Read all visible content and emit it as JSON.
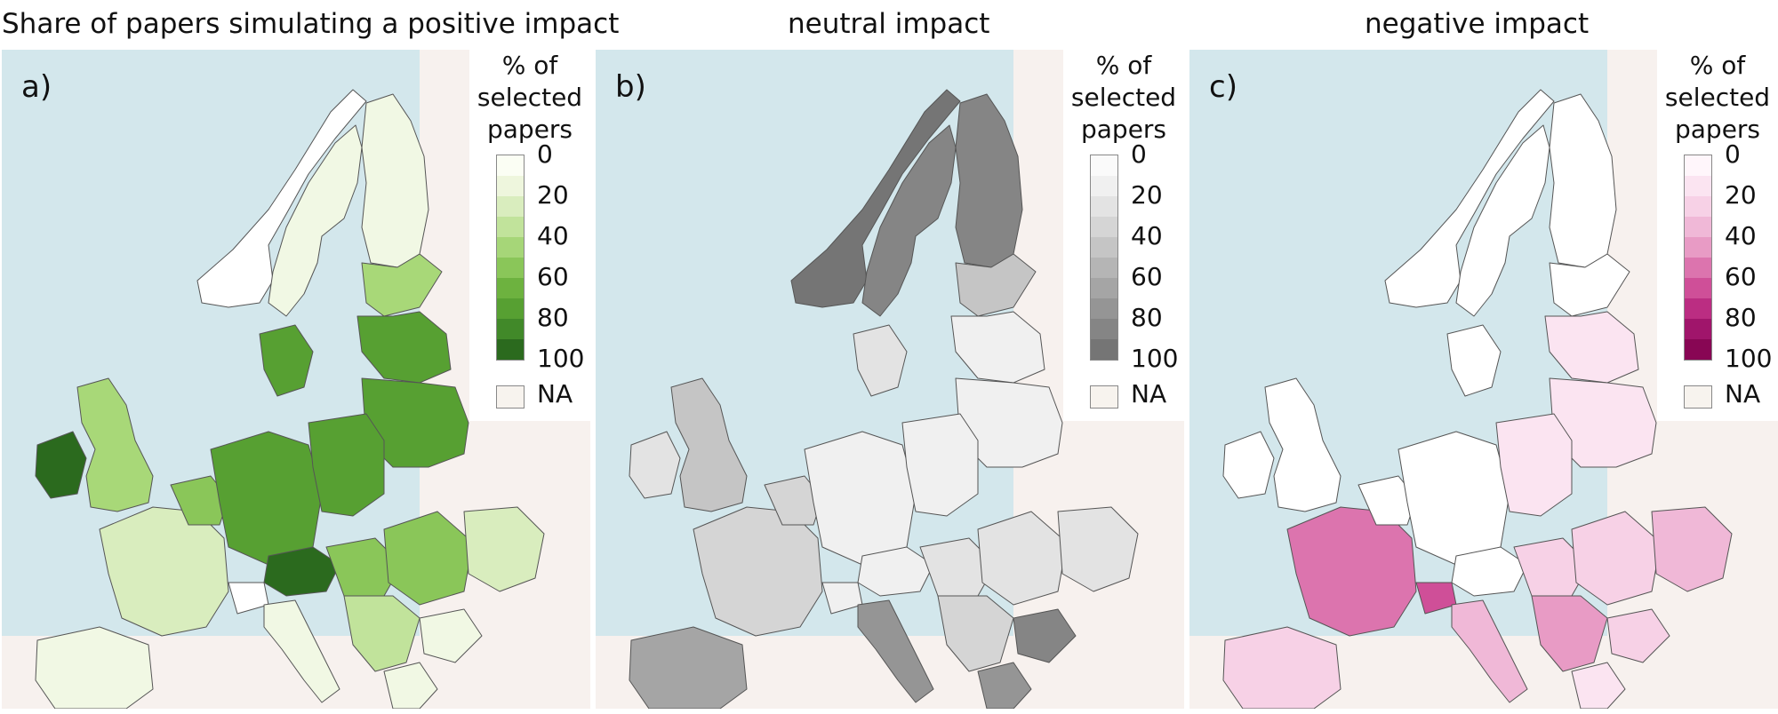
{
  "panels": [
    {
      "title": "Share of papers simulating a positive impact",
      "letter": "a)",
      "legend": {
        "title_lines": [
          "% of",
          "selected",
          "papers"
        ],
        "ticks": [
          "0",
          "20",
          "40",
          "60",
          "80",
          "100"
        ],
        "na_label": "NA",
        "colors": [
          "#fbfef4",
          "#eef6dd",
          "#d9edbe",
          "#c1e39b",
          "#a6d678",
          "#8ac659",
          "#6db23f",
          "#57a032",
          "#418929",
          "#2b6a1e"
        ]
      }
    },
    {
      "title": "neutral impact",
      "letter": "b)",
      "legend": {
        "title_lines": [
          "% of",
          "selected",
          "papers"
        ],
        "ticks": [
          "0",
          "20",
          "40",
          "60",
          "80",
          "100"
        ],
        "na_label": "NA",
        "colors": [
          "#fafafa",
          "#f0f0f0",
          "#e3e3e3",
          "#d5d5d5",
          "#c5c5c5",
          "#b5b5b5",
          "#a5a5a5",
          "#959595",
          "#858585",
          "#757575"
        ]
      }
    },
    {
      "title": "negative impact",
      "letter": "c)",
      "legend": {
        "title_lines": [
          "% of",
          "selected",
          "papers"
        ],
        "ticks": [
          "0",
          "20",
          "40",
          "60",
          "80",
          "100"
        ],
        "na_label": "NA",
        "colors": [
          "#fff6fb",
          "#fbe4f1",
          "#f7d1e6",
          "#f0b8d7",
          "#e89bc5",
          "#dc74ae",
          "#cf4f98",
          "#bb2d82",
          "#a0156b",
          "#880654"
        ]
      }
    }
  ],
  "colors": {
    "sea": "#d3e7ec",
    "land_outside": "#f7f1ee",
    "border": "#555555"
  }
}
